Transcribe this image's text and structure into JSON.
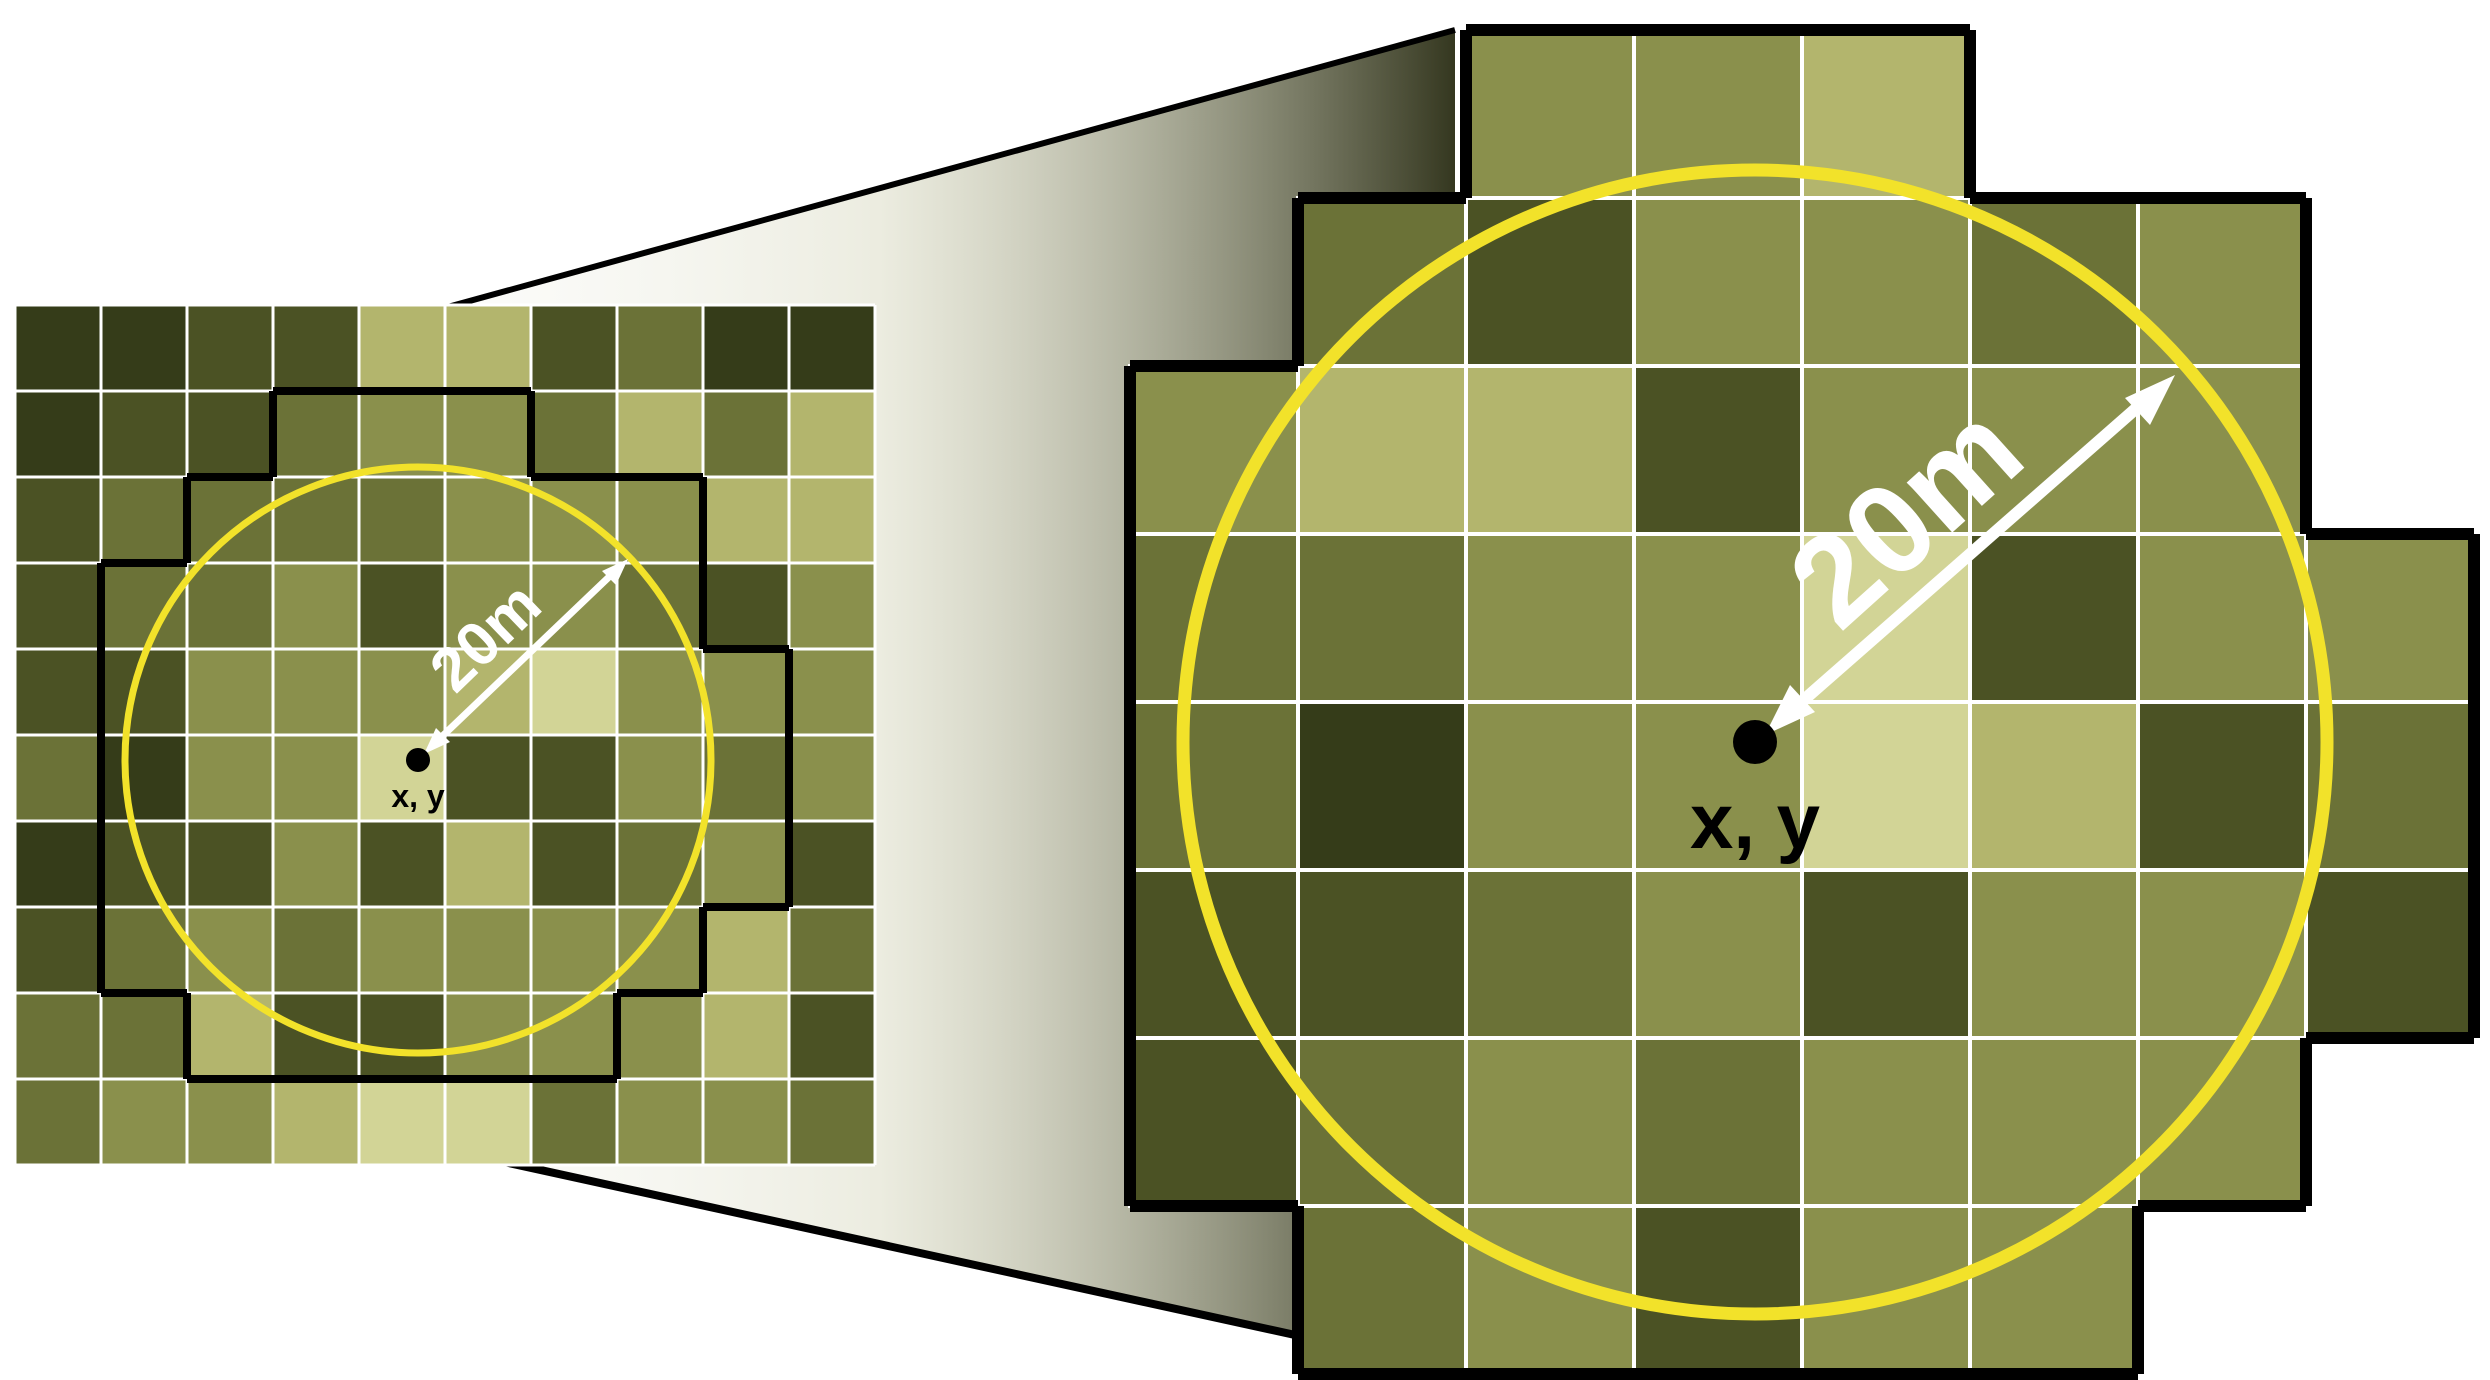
{
  "labels": {
    "distance_small": "20m",
    "point_small": "x, y",
    "distance_large": "20m",
    "point_large": "x, y"
  },
  "colors": {
    "background": "#ffffff",
    "grid_line": "#ffffff",
    "outline": "#000000",
    "circle": "#f2e22a",
    "arrow": "#ffffff",
    "palette": [
      "#353c19",
      "#4b5224",
      "#6b7237",
      "#8a904c",
      "#b3b56d",
      "#d2d496"
    ]
  },
  "raster": {
    "rows": 10,
    "cols": 10,
    "shade_index": [
      [
        0,
        0,
        1,
        1,
        4,
        4,
        1,
        2,
        0,
        0
      ],
      [
        0,
        1,
        1,
        2,
        3,
        3,
        2,
        4,
        2,
        4
      ],
      [
        1,
        2,
        2,
        2,
        2,
        3,
        3,
        3,
        4,
        4
      ],
      [
        1,
        2,
        2,
        3,
        1,
        3,
        3,
        2,
        1,
        3
      ],
      [
        1,
        1,
        3,
        3,
        3,
        4,
        5,
        3,
        3,
        3
      ],
      [
        2,
        0,
        3,
        3,
        5,
        1,
        1,
        3,
        2,
        3
      ],
      [
        0,
        1,
        1,
        3,
        1,
        4,
        1,
        2,
        3,
        1
      ],
      [
        1,
        2,
        3,
        2,
        3,
        3,
        3,
        3,
        4,
        2
      ],
      [
        2,
        2,
        4,
        1,
        1,
        3,
        3,
        3,
        4,
        1
      ],
      [
        2,
        3,
        3,
        4,
        5,
        5,
        2,
        3,
        3,
        2
      ]
    ]
  },
  "zoom_window": {
    "rows": 8,
    "cols": 8,
    "shade_index": [
      [
        1,
        2,
        3,
        3,
        4,
        4,
        2,
        2
      ],
      [
        2,
        2,
        1,
        3,
        3,
        2,
        3,
        3
      ],
      [
        3,
        4,
        4,
        1,
        3,
        3,
        3,
        4
      ],
      [
        2,
        2,
        3,
        3,
        5,
        1,
        3,
        3
      ],
      [
        2,
        0,
        3,
        3,
        5,
        4,
        1,
        2
      ],
      [
        1,
        1,
        2,
        3,
        1,
        3,
        3,
        1
      ],
      [
        1,
        2,
        3,
        2,
        3,
        3,
        3,
        1
      ],
      [
        1,
        2,
        3,
        1,
        3,
        3,
        4,
        2
      ]
    ]
  },
  "neighbourhood_mask": [
    [
      0,
      0,
      1,
      1,
      1,
      0,
      0,
      0
    ],
    [
      0,
      1,
      1,
      1,
      1,
      1,
      1,
      0
    ],
    [
      1,
      1,
      1,
      1,
      1,
      1,
      1,
      0
    ],
    [
      1,
      1,
      1,
      1,
      1,
      1,
      1,
      1
    ],
    [
      1,
      1,
      1,
      1,
      1,
      1,
      1,
      1
    ],
    [
      1,
      1,
      1,
      1,
      1,
      1,
      1,
      1
    ],
    [
      1,
      1,
      1,
      1,
      1,
      1,
      1,
      0
    ],
    [
      0,
      1,
      1,
      1,
      1,
      1,
      0,
      0
    ]
  ]
}
